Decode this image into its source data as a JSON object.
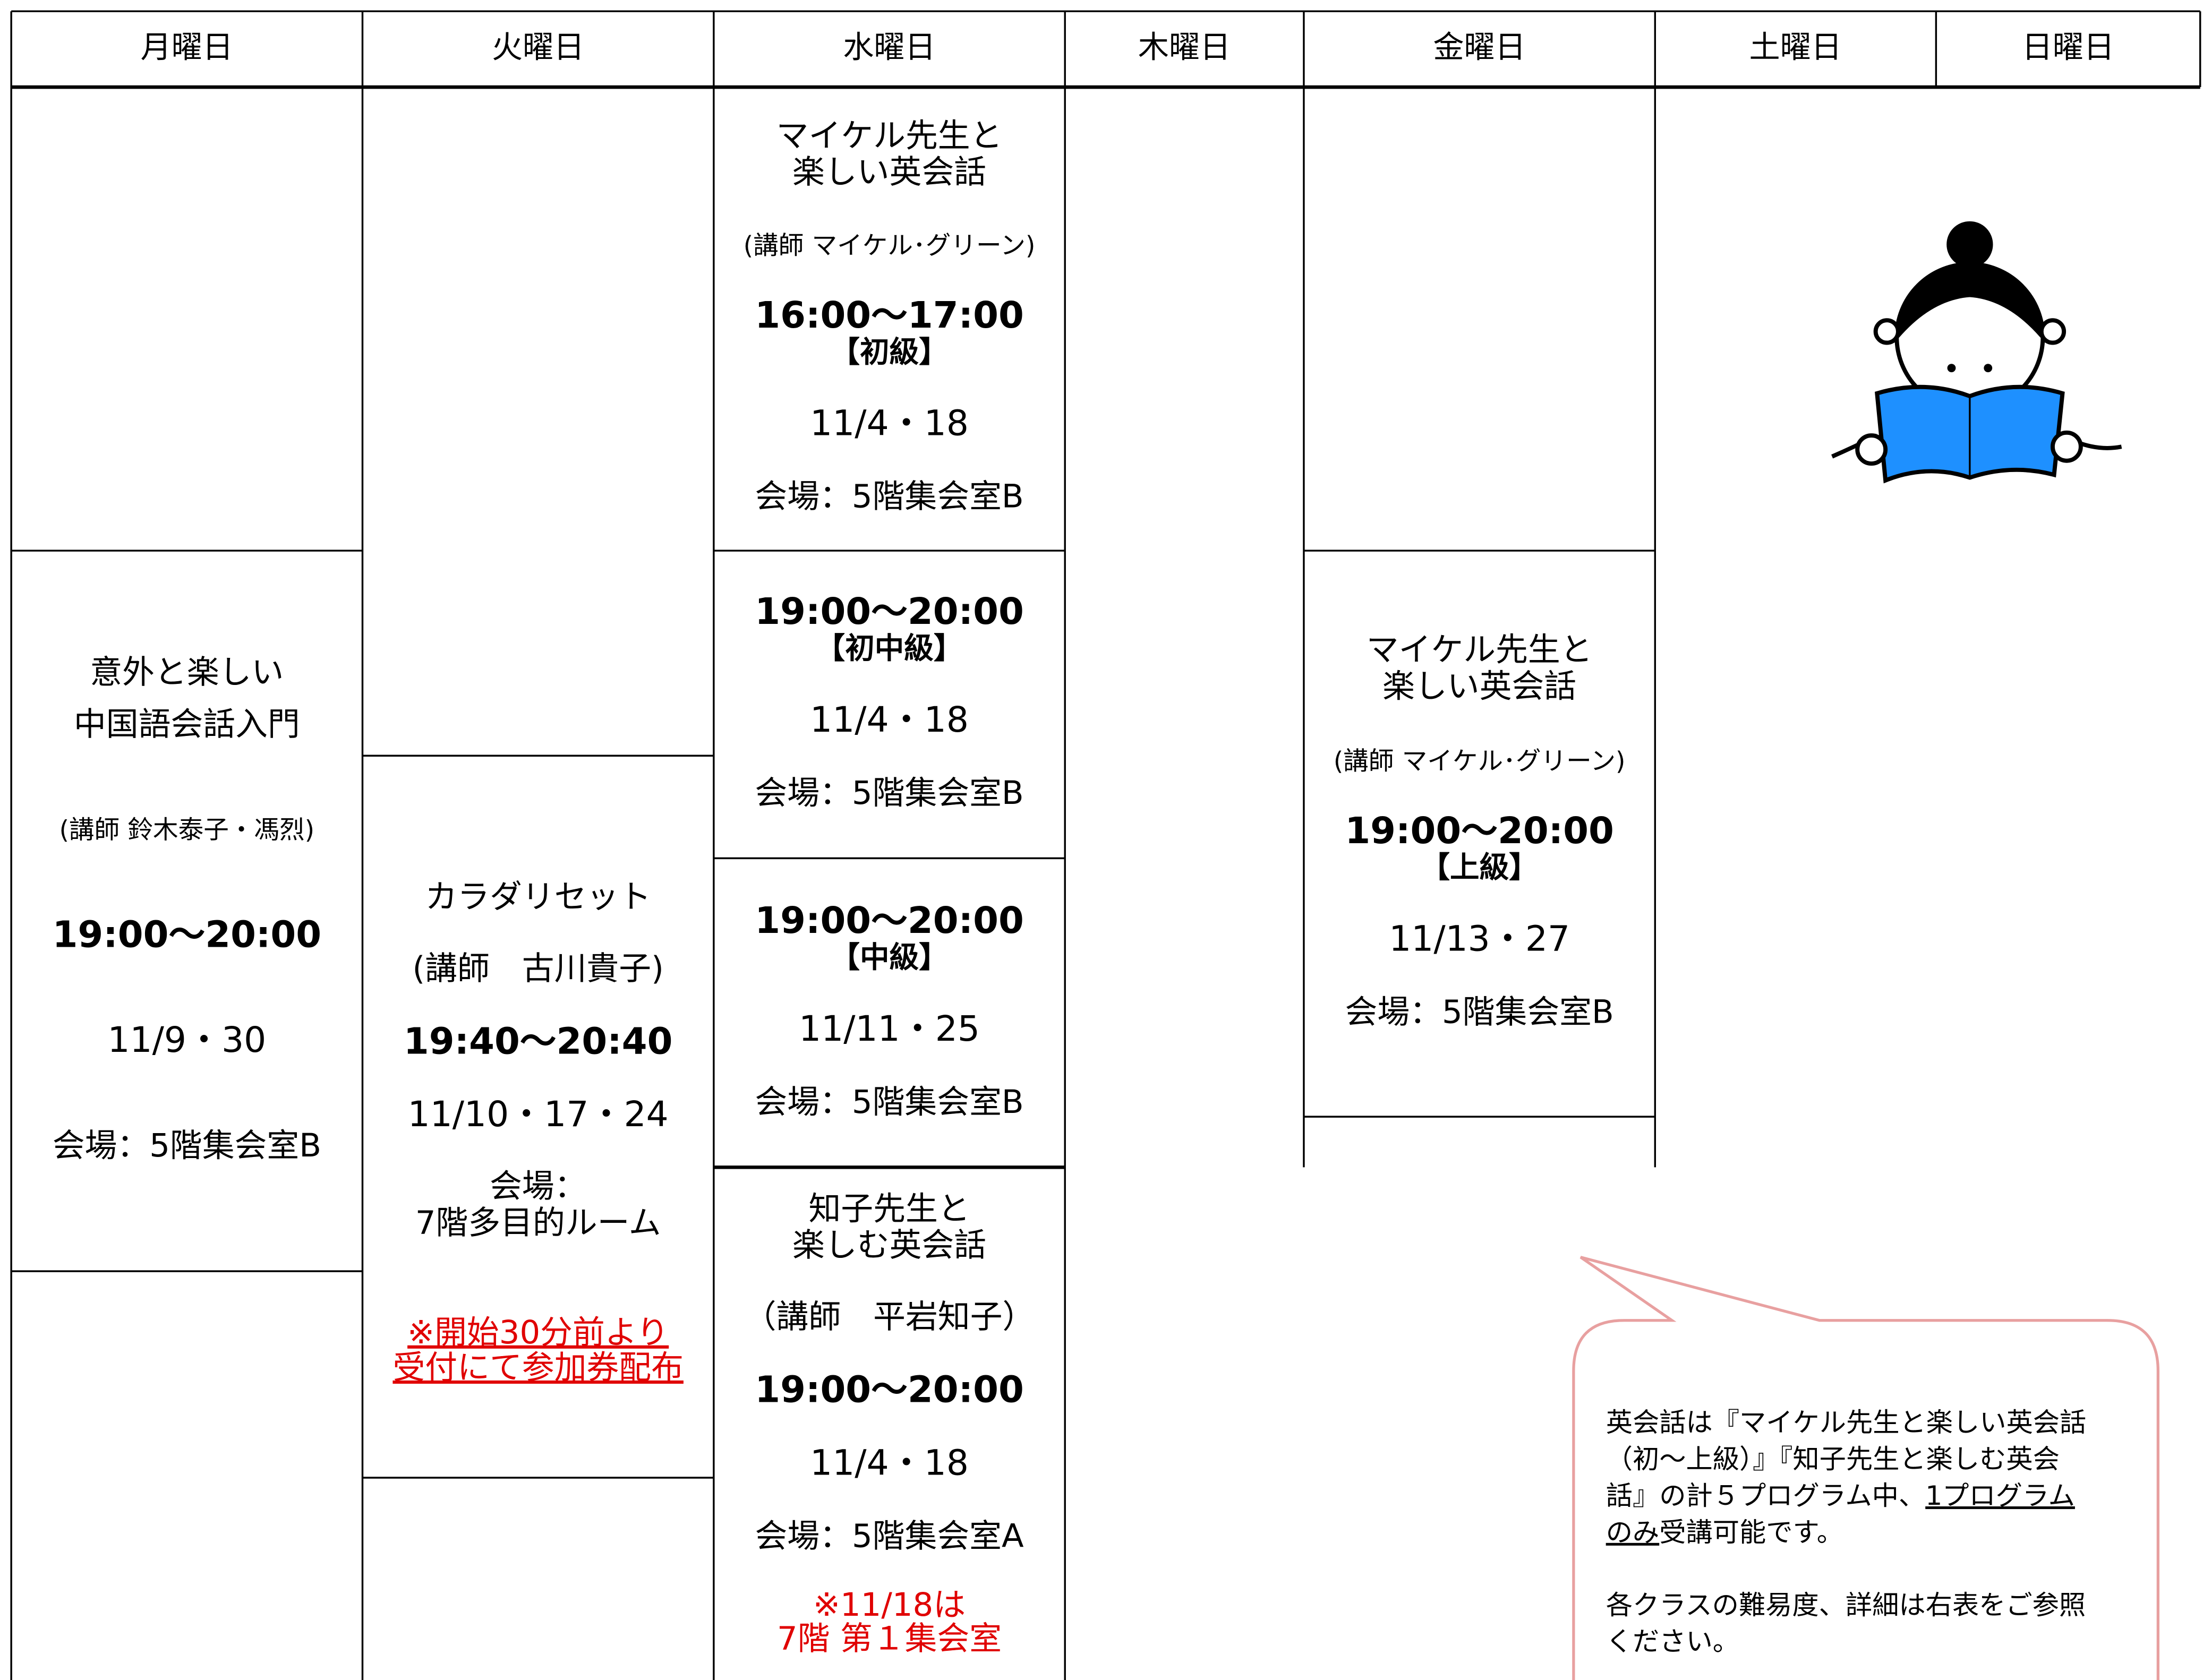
{
  "schedule": {
    "days": [
      "月曜日",
      "火曜日",
      "水曜日",
      "木曜日",
      "金曜日",
      "土曜日",
      "日曜日"
    ],
    "monday": {
      "title": [
        "意外と楽しい",
        "中国語会話入門"
      ],
      "teacher": "(講師 鈴木泰子・馮烈)",
      "time": "19:00～20:00",
      "dates": "11/9・30",
      "venue": "会場：5階集会室B"
    },
    "tuesday": {
      "title": "カラダリセット",
      "teacher": "(講師　古川貴子)",
      "time": "19:40～20:40",
      "dates": "11/10・17・24",
      "venue": [
        "会場：",
        "7階多目的ルーム"
      ],
      "note": [
        "※開始30分前より",
        "受付にて参加券配布"
      ]
    },
    "wednesday": [
      {
        "title": [
          "マイケル先生と",
          "楽しい英会話"
        ],
        "teacher": "(講師 マイケル･グリーン)",
        "time": "16:00～17:00",
        "level": "【初級】",
        "dates": "11/4・18",
        "venue": "会場：5階集会室B"
      },
      {
        "time": "19:00～20:00",
        "level": "【初中級】",
        "dates": "11/4・18",
        "venue": "会場：5階集会室B"
      },
      {
        "time": "19:00～20:00",
        "level": "【中級】",
        "dates": "11/11・25",
        "venue": "会場：5階集会室B"
      },
      {
        "title": [
          "知子先生と",
          "楽しむ英会話"
        ],
        "teacher": "（講師　平岩知子）",
        "time": "19:00～20:00",
        "dates": "11/4・18",
        "venue": "会場：5階集会室A",
        "note": [
          "※11/18は",
          "7階 第１集会室"
        ]
      }
    ],
    "friday": {
      "title": [
        "マイケル先生と",
        "楽しい英会話"
      ],
      "teacher": "(講師 マイケル･グリーン)",
      "time": "19:00～20:00",
      "level": "【上級】",
      "dates": "11/13・27",
      "venue": "会場：5階集会室B"
    },
    "notice": {
      "lines": [
        "英会話は『マイケル先生と楽しい英会話",
        "（初～上級）』『知子先生と楽しむ英会",
        "話』の計５プログラム中、"
      ],
      "underlined": [
        "1プログラム",
        "のみ"
      ],
      "after": "受講可能です。",
      "footer": [
        "各クラスの難易度、詳細は右表をご参照",
        "ください。"
      ]
    }
  }
}
